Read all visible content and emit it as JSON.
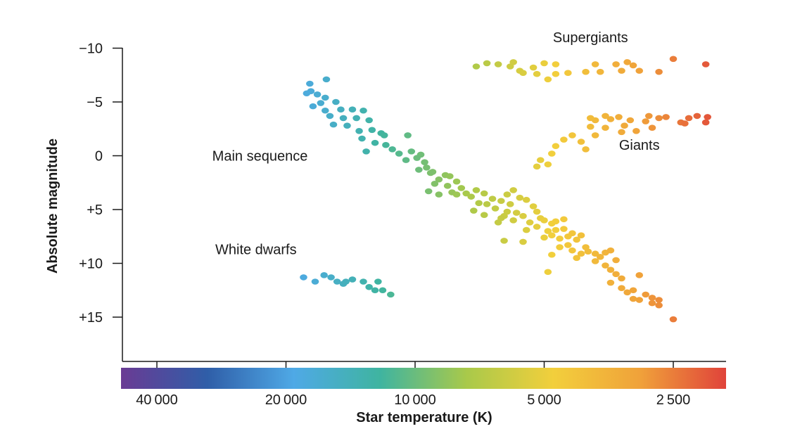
{
  "chart_data": {
    "type": "scatter",
    "title": "",
    "xlabel": "Star temperature (K)",
    "ylabel": "Absolute magnitude",
    "x_scale": "log",
    "x_reversed": true,
    "y_reversed": true,
    "ylim": [
      -10,
      19
    ],
    "y_ticks": [
      -10,
      -5,
      0,
      5,
      10,
      15
    ],
    "y_tick_labels": [
      "−10",
      "−5",
      "0",
      "+5",
      "+10",
      "+15"
    ],
    "x_ticks": [
      40000,
      20000,
      10000,
      5000,
      2500
    ],
    "x_tick_labels": [
      "40 000",
      "20 000",
      "10 000",
      "5 000",
      "2 500"
    ],
    "grid": false,
    "colorbar": {
      "stops": [
        "#6a3b94",
        "#2f5ea8",
        "#4fa9e6",
        "#3fb4a0",
        "#a9c94a",
        "#f2cf3c",
        "#f0a23a",
        "#e0433a"
      ]
    },
    "annotations": [
      {
        "text": "Supergiants",
        "x": 3900,
        "y": -11
      },
      {
        "text": "Giants",
        "x": 3000,
        "y": -1
      },
      {
        "text": "Main sequence",
        "x": 23000,
        "y": 0
      },
      {
        "text": "White dwarfs",
        "x": 23500,
        "y": 8.7
      }
    ],
    "series": [
      {
        "region": "main-sequence",
        "points": [
          [
            17600,
            -6.7
          ],
          [
            16100,
            -7.1
          ],
          [
            17500,
            -6
          ],
          [
            17900,
            -5.8
          ],
          [
            16900,
            -5.7
          ],
          [
            16200,
            -5.4
          ],
          [
            15300,
            -5
          ],
          [
            16600,
            -4.9
          ],
          [
            17300,
            -4.6
          ],
          [
            16200,
            -4.2
          ],
          [
            14900,
            -4.3
          ],
          [
            14000,
            -4.3
          ],
          [
            13200,
            -4.2
          ],
          [
            15800,
            -3.7
          ],
          [
            14700,
            -3.5
          ],
          [
            13700,
            -3.5
          ],
          [
            12800,
            -3.3
          ],
          [
            15500,
            -2.9
          ],
          [
            14400,
            -2.8
          ],
          [
            13500,
            -2.3
          ],
          [
            12600,
            -2.4
          ],
          [
            12000,
            -2.1
          ],
          [
            11800,
            -1.9
          ],
          [
            13300,
            -1.6
          ],
          [
            12400,
            -1.2
          ],
          [
            11700,
            -1.0
          ],
          [
            10400,
            -1.9
          ],
          [
            11300,
            -0.6
          ],
          [
            13000,
            -0.4
          ],
          [
            10900,
            -0.2
          ],
          [
            10500,
            0.4
          ],
          [
            10200,
            -0.4
          ],
          [
            9700,
            -0.1
          ],
          [
            9900,
            0.2
          ],
          [
            9500,
            0.6
          ],
          [
            9400,
            1.1
          ],
          [
            9100,
            1.5
          ],
          [
            9800,
            1.3
          ],
          [
            8500,
            1.8
          ],
          [
            8300,
            1.9
          ],
          [
            9200,
            1.6
          ],
          [
            8800,
            2.2
          ],
          [
            8000,
            2.4
          ],
          [
            9000,
            2.6
          ],
          [
            8400,
            2.8
          ],
          [
            7800,
            3.0
          ],
          [
            8200,
            3.4
          ],
          [
            9300,
            3.3
          ],
          [
            8800,
            3.6
          ],
          [
            8000,
            3.6
          ],
          [
            7600,
            3.5
          ],
          [
            7200,
            3.2
          ],
          [
            6900,
            3.5
          ],
          [
            7400,
            3.8
          ],
          [
            6600,
            4.0
          ],
          [
            6100,
            3.6
          ],
          [
            5900,
            3.2
          ],
          [
            6300,
            4.2
          ],
          [
            6800,
            4.5
          ],
          [
            7100,
            4.4
          ],
          [
            5700,
            3.9
          ],
          [
            5500,
            4.1
          ],
          [
            6000,
            4.5
          ],
          [
            6500,
            4.9
          ],
          [
            7300,
            5.1
          ],
          [
            5800,
            5.3
          ],
          [
            6200,
            5.6
          ],
          [
            6900,
            5.5
          ],
          [
            5300,
            4.7
          ],
          [
            5200,
            5.2
          ],
          [
            5600,
            5.6
          ],
          [
            5100,
            5.8
          ],
          [
            6100,
            5.2
          ],
          [
            6300,
            5.8
          ],
          [
            5900,
            6.0
          ],
          [
            6400,
            6.2
          ],
          [
            5400,
            6.2
          ],
          [
            5000,
            6.0
          ],
          [
            4800,
            6.3
          ],
          [
            4700,
            6.1
          ],
          [
            4500,
            5.9
          ],
          [
            5200,
            6.6
          ],
          [
            5500,
            6.9
          ],
          [
            4900,
            7.0
          ],
          [
            4700,
            6.9
          ],
          [
            4500,
            6.8
          ],
          [
            4800,
            7.4
          ],
          [
            4600,
            7.7
          ],
          [
            4400,
            7.5
          ],
          [
            5000,
            7.6
          ],
          [
            4300,
            7.2
          ],
          [
            4200,
            7.8
          ],
          [
            4100,
            7.4
          ],
          [
            4400,
            8.3
          ],
          [
            4600,
            8.5
          ],
          [
            4300,
            8.8
          ],
          [
            4000,
            8.5
          ],
          [
            3950,
            8.9
          ],
          [
            4100,
            9.1
          ],
          [
            3800,
            9.1
          ],
          [
            3700,
            9.4
          ],
          [
            3600,
            9.0
          ],
          [
            3500,
            8.8
          ],
          [
            3800,
            9.8
          ],
          [
            3600,
            10.2
          ],
          [
            3400,
            9.7
          ],
          [
            3500,
            10.6
          ],
          [
            3400,
            11.0
          ],
          [
            3300,
            11.4
          ],
          [
            3500,
            11.8
          ],
          [
            3300,
            12.3
          ],
          [
            3200,
            12.7
          ],
          [
            3100,
            12.5
          ],
          [
            3000,
            11.1
          ],
          [
            2900,
            12.9
          ],
          [
            2800,
            13.2
          ],
          [
            3000,
            13.4
          ],
          [
            2700,
            13.4
          ],
          [
            2800,
            13.7
          ],
          [
            2700,
            13.9
          ],
          [
            4800,
            9.2
          ],
          [
            4200,
            9.5
          ],
          [
            5600,
            8.0
          ],
          [
            6200,
            7.9
          ],
          [
            4900,
            10.8
          ],
          [
            3100,
            13.3
          ],
          [
            2500,
            15.2
          ]
        ]
      },
      {
        "region": "white-dwarfs",
        "points": [
          [
            18200,
            11.3
          ],
          [
            17100,
            11.7
          ],
          [
            16300,
            11.1
          ],
          [
            15700,
            11.3
          ],
          [
            15200,
            11.7
          ],
          [
            14700,
            11.9
          ],
          [
            14500,
            11.7
          ],
          [
            14000,
            11.5
          ],
          [
            13200,
            11.7
          ],
          [
            12800,
            12.2
          ],
          [
            12400,
            12.5
          ],
          [
            11900,
            12.5
          ],
          [
            12200,
            11.7
          ],
          [
            11400,
            12.9
          ]
        ]
      },
      {
        "region": "giants",
        "points": [
          [
            5200,
            1.0
          ],
          [
            4900,
            0.8
          ],
          [
            5100,
            0.4
          ],
          [
            4800,
            -0.2
          ],
          [
            4700,
            -0.9
          ],
          [
            4500,
            -1.5
          ],
          [
            4300,
            -1.9
          ],
          [
            4100,
            -1.3
          ],
          [
            4000,
            -0.6
          ],
          [
            3800,
            -1.9
          ],
          [
            3600,
            -2.6
          ],
          [
            3300,
            -2.2
          ],
          [
            3050,
            -2.3
          ],
          [
            2800,
            -2.6
          ],
          [
            3900,
            -2.7
          ],
          [
            3800,
            -3.3
          ],
          [
            3500,
            -3.4
          ],
          [
            3250,
            -2.8
          ],
          [
            2900,
            -3.2
          ],
          [
            2700,
            -3.5
          ],
          [
            3900,
            -3.5
          ],
          [
            3600,
            -3.7
          ],
          [
            3350,
            -3.6
          ],
          [
            3150,
            -3.3
          ],
          [
            2850,
            -3.7
          ],
          [
            2600,
            -3.6
          ],
          [
            2400,
            -3.1
          ],
          [
            2300,
            -3.5
          ],
          [
            2200,
            -3.7
          ],
          [
            2100,
            -3.1
          ],
          [
            2080,
            -3.6
          ],
          [
            2350,
            -3.0
          ]
        ]
      },
      {
        "region": "supergiants",
        "points": [
          [
            7200,
            -8.3
          ],
          [
            6800,
            -8.6
          ],
          [
            6400,
            -8.5
          ],
          [
            6000,
            -8.3
          ],
          [
            5900,
            -8.7
          ],
          [
            5700,
            -7.9
          ],
          [
            5600,
            -7.7
          ],
          [
            5300,
            -8.2
          ],
          [
            5000,
            -8.6
          ],
          [
            4700,
            -8.5
          ],
          [
            5200,
            -7.6
          ],
          [
            4900,
            -7.1
          ],
          [
            4700,
            -7.6
          ],
          [
            4400,
            -7.7
          ],
          [
            4000,
            -7.8
          ],
          [
            3800,
            -8.5
          ],
          [
            3700,
            -7.8
          ],
          [
            3400,
            -8.5
          ],
          [
            3300,
            -7.9
          ],
          [
            3200,
            -8.7
          ],
          [
            3100,
            -8.4
          ],
          [
            3000,
            -7.9
          ],
          [
            2700,
            -7.8
          ],
          [
            2500,
            -9.0
          ],
          [
            2100,
            -8.5
          ]
        ]
      }
    ]
  }
}
